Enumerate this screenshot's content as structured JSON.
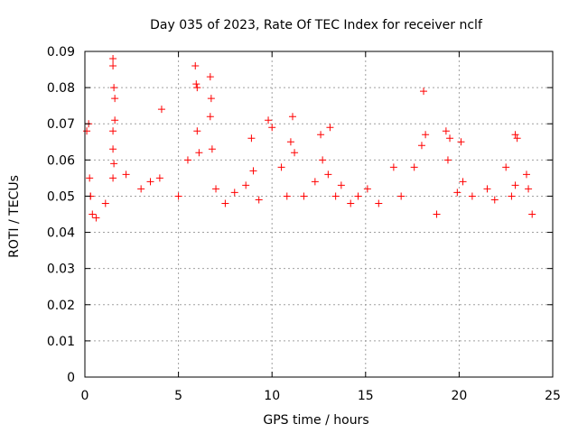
{
  "chart_data": {
    "type": "scatter",
    "title": "Day 035 of 2023, Rate Of TEC Index for receiver nclf",
    "xlabel": "GPS time / hours",
    "ylabel": "ROTI / TECUs",
    "xlim": [
      0,
      25
    ],
    "ylim": [
      0,
      0.09
    ],
    "x_ticks": [
      "0",
      "5",
      "10",
      "15",
      "20",
      "25"
    ],
    "y_ticks": [
      "0",
      "0.01",
      "0.02",
      "0.03",
      "0.04",
      "0.05",
      "0.06",
      "0.07",
      "0.08",
      "0.09"
    ],
    "grid": true,
    "marker": "plus",
    "color": "#ff0000",
    "series": [
      {
        "x": [
          0.1,
          0.2,
          0.25,
          0.3,
          0.4,
          1.5,
          1.5,
          1.55,
          1.6,
          1.6,
          1.5,
          1.5,
          1.55,
          1.5,
          4.1,
          5.9,
          5.95,
          6.0,
          6.0,
          6.7,
          6.75,
          6.7,
          6.8,
          6.1,
          7.5,
          8.9,
          9.0,
          9.8,
          10.0,
          10.5,
          11.1,
          11.0,
          11.2,
          12.6,
          12.7,
          13.1,
          13.0,
          13.7,
          14.2,
          15.1,
          16.5,
          18.1,
          18.2,
          18.0,
          19.3,
          19.5,
          19.4,
          20.1,
          20.2,
          21.5,
          22.5,
          23.0,
          23.1,
          23.0,
          23.6,
          23.7,
          23.9,
          0.3,
          0.6,
          1.1,
          2.2,
          3.0,
          3.5,
          4.0,
          5.0,
          5.5,
          7.0,
          8.0,
          8.6,
          9.3,
          10.8,
          11.7,
          12.3,
          13.4,
          14.6,
          15.7,
          16.9,
          17.6,
          18.8,
          19.9,
          20.7,
          21.9,
          22.8
        ],
        "y": [
          0.068,
          0.07,
          0.055,
          0.05,
          0.045,
          0.088,
          0.086,
          0.08,
          0.077,
          0.071,
          0.068,
          0.063,
          0.059,
          0.055,
          0.074,
          0.086,
          0.081,
          0.08,
          0.068,
          0.083,
          0.077,
          0.072,
          0.063,
          0.062,
          0.048,
          0.066,
          0.057,
          0.071,
          0.069,
          0.058,
          0.072,
          0.065,
          0.062,
          0.067,
          0.06,
          0.069,
          0.056,
          0.053,
          0.048,
          0.052,
          0.058,
          0.079,
          0.067,
          0.064,
          0.068,
          0.066,
          0.06,
          0.065,
          0.054,
          0.052,
          0.058,
          0.067,
          0.066,
          0.053,
          0.056,
          0.052,
          0.045,
          0.05,
          0.044,
          0.048,
          0.056,
          0.052,
          0.054,
          0.055,
          0.05,
          0.06,
          0.052,
          0.051,
          0.053,
          0.049,
          0.05,
          0.05,
          0.054,
          0.05,
          0.05,
          0.048,
          0.05,
          0.058,
          0.045,
          0.051,
          0.05,
          0.049,
          0.05
        ]
      }
    ]
  }
}
